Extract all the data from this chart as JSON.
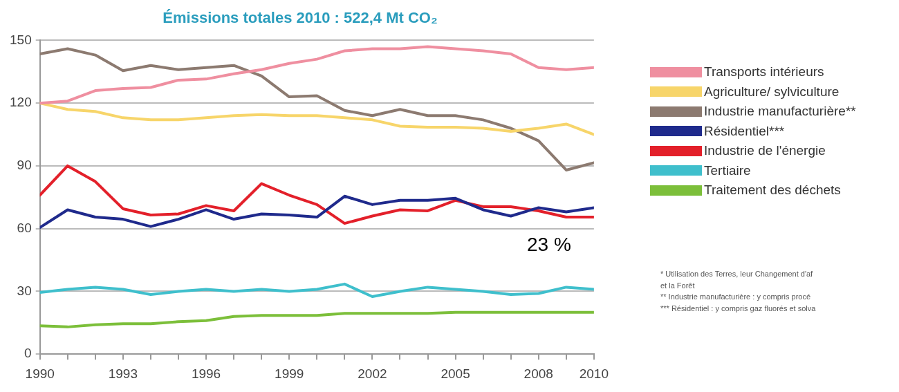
{
  "chart_data": {
    "type": "line",
    "title": "Émissions totales 2010 : 522,4 Mt CO₂",
    "x": [
      1990,
      1991,
      1992,
      1993,
      1994,
      1995,
      1996,
      1997,
      1998,
      1999,
      2000,
      2001,
      2002,
      2003,
      2004,
      2005,
      2006,
      2007,
      2008,
      2009,
      2010
    ],
    "series": [
      {
        "name": "Transports intérieurs",
        "color": "#ef8fa0",
        "values": [
          120,
          121,
          126,
          127,
          127.5,
          131,
          131.5,
          134,
          136,
          139,
          141,
          145,
          146,
          146,
          147,
          146,
          145,
          143.5,
          137,
          136,
          137
        ]
      },
      {
        "name": "Agriculture/ sylviculture",
        "color": "#f7d56a",
        "values": [
          120,
          117,
          116,
          113,
          112,
          112,
          113,
          114,
          114.5,
          114,
          114,
          113,
          112,
          109,
          108.5,
          108.5,
          108,
          106.5,
          108,
          110,
          105
        ]
      },
      {
        "name": "Industrie manufacturière**",
        "color": "#8c7a70",
        "values": [
          143.5,
          146,
          143,
          135.5,
          138,
          136,
          137,
          138,
          133,
          123,
          123.5,
          116.5,
          114,
          117,
          114,
          114,
          112,
          108,
          102,
          88,
          91.5
        ]
      },
      {
        "name": "Résidentiel***",
        "color": "#1f2a8c",
        "values": [
          60.5,
          69,
          65.5,
          64.5,
          61,
          64.5,
          69,
          64.5,
          67,
          66.5,
          65.5,
          75.5,
          71.5,
          73.5,
          73.5,
          74.5,
          69,
          66,
          70,
          68,
          70
        ]
      },
      {
        "name": "Industrie de l'énergie",
        "color": "#e3202a",
        "values": [
          76,
          90,
          82.5,
          69.5,
          66.5,
          67,
          71,
          68.5,
          81.5,
          76,
          71.5,
          62.5,
          66,
          69,
          68.5,
          73.5,
          70.5,
          70.5,
          68.5,
          65.5,
          65.5
        ]
      },
      {
        "name": "Tertiaire",
        "color": "#3fbfcc",
        "values": [
          29.5,
          31,
          32,
          31,
          28.5,
          30,
          31,
          30,
          31,
          30,
          31,
          33.5,
          27.5,
          30,
          32,
          31,
          30,
          28.5,
          29,
          32,
          31
        ]
      },
      {
        "name": "Traitement des déchets",
        "color": "#7cbf3a",
        "values": [
          13.5,
          13,
          14,
          14.5,
          14.5,
          15.5,
          16,
          18,
          18.5,
          18.5,
          18.5,
          19.5,
          19.5,
          19.5,
          19.5,
          20,
          20,
          20,
          20,
          20,
          20
        ]
      }
    ],
    "xlim": [
      1990,
      2010
    ],
    "xticks": [
      1990,
      {
        "value": 1991,
        "label": null
      },
      {
        "value": 1992,
        "label": null
      },
      1993,
      {
        "value": 1994,
        "label": null
      },
      {
        "value": 1995,
        "label": null
      },
      1996,
      {
        "value": 1997,
        "label": null
      },
      {
        "value": 1998,
        "label": null
      },
      1999,
      {
        "value": 2000,
        "label": null
      },
      {
        "value": 2001,
        "label": null
      },
      2002,
      {
        "value": 2003,
        "label": null
      },
      {
        "value": 2004,
        "label": null
      },
      2005,
      {
        "value": 2006,
        "label": null
      },
      {
        "value": 2007,
        "label": null
      },
      2008,
      {
        "value": 2009,
        "label": null
      },
      2010
    ],
    "ylim": [
      0,
      150
    ],
    "yticks": [
      0,
      30,
      60,
      90,
      120,
      150
    ],
    "grid": "y",
    "legend": "right",
    "marker": "none",
    "line_style": "solid",
    "annotations": [
      "23 %",
      "* Utilisation des Terres, leur Changement d'af\net la Forêt",
      "** Industrie manufacturière : y compris procé",
      "*** Résidentiel : y compris gaz fluorés et solva"
    ]
  }
}
